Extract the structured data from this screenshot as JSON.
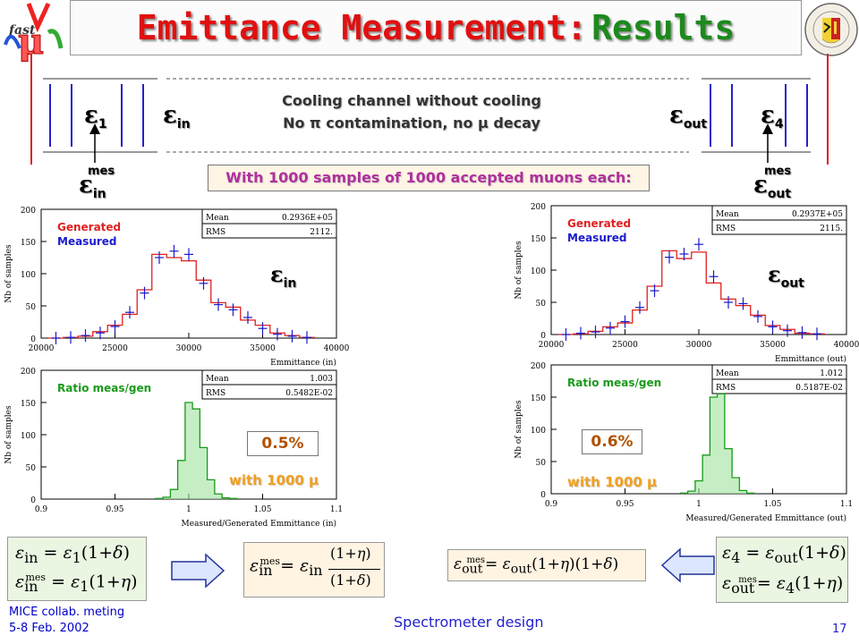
{
  "title": {
    "part1": "Emittance Measurement:",
    "part2": "Results"
  },
  "schematic": {
    "eps1": "1",
    "eps_in": "in",
    "eps_out": "out",
    "eps4": "4",
    "cooling_line1": "Cooling channel without cooling",
    "cooling_line2": "No π contamination, no μ decay",
    "mes_left": {
      "sup": "mes",
      "sub": "in"
    },
    "mes_right": {
      "sup": "mes",
      "sub": "out"
    }
  },
  "samples_text": "With 1000 samples of 1000 accepted muons each:",
  "plots": {
    "in_top": {
      "legend_generated": "Generated",
      "legend_measured": "Measured",
      "stats": {
        "mean_label": "Mean",
        "mean": "0.2936E+05",
        "rms_label": "RMS",
        "rms": "2112."
      },
      "label": "in",
      "ylabel": "Nb of samples",
      "xlabel": "Emmittance (in)",
      "xticks": [
        "20000",
        "25000",
        "30000",
        "35000",
        "40000"
      ],
      "yticks": [
        "0",
        "50",
        "100",
        "150",
        "200"
      ]
    },
    "out_top": {
      "legend_generated": "Generated",
      "legend_measured": "Measured",
      "stats": {
        "mean_label": "Mean",
        "mean": "0.2937E+05",
        "rms_label": "RMS",
        "rms": "2115."
      },
      "label": "out",
      "ylabel": "Nb of samples",
      "xlabel": "Emmittance (out)",
      "xticks": [
        "20000",
        "25000",
        "30000",
        "35000",
        "40000"
      ],
      "yticks": [
        "0",
        "50",
        "100",
        "150",
        "200"
      ]
    },
    "in_ratio": {
      "legend": "Ratio meas/gen",
      "stats": {
        "mean_label": "Mean",
        "mean": "1.003",
        "rms_label": "RMS",
        "rms": "0.5482E-02"
      },
      "percent": "0.5%",
      "with": "with 1000 μ",
      "ylabel": "Nb of samples",
      "xlabel": "Measured/Generated Emmittance (in)",
      "xticks": [
        "0.9",
        "0.95",
        "1",
        "1.05",
        "1.1"
      ],
      "yticks": [
        "0",
        "50",
        "100",
        "150",
        "200"
      ]
    },
    "out_ratio": {
      "legend": "Ratio meas/gen",
      "stats": {
        "mean_label": "Mean",
        "mean": "1.012",
        "rms_label": "RMS",
        "rms": "0.5187E-02"
      },
      "percent": "0.6%",
      "with": "with 1000 μ",
      "ylabel": "Nb of samples",
      "xlabel": "Measured/Generated Emmittance (out)",
      "xticks": [
        "0.9",
        "0.95",
        "1",
        "1.05",
        "1.1"
      ],
      "yticks": [
        "0",
        "50",
        "100",
        "150",
        "200"
      ]
    }
  },
  "chart_data": [
    {
      "type": "bar",
      "name": "Emittance in",
      "x": [
        21000,
        22000,
        23000,
        24000,
        25000,
        26000,
        27000,
        28000,
        29000,
        30000,
        31000,
        32000,
        33000,
        34000,
        35000,
        36000,
        37000,
        38000
      ],
      "series": [
        {
          "name": "Generated",
          "values": [
            0,
            1,
            3,
            10,
            20,
            37,
            75,
            130,
            125,
            120,
            90,
            55,
            48,
            28,
            20,
            8,
            4,
            1
          ]
        },
        {
          "name": "Measured",
          "values": [
            0,
            1,
            4,
            8,
            18,
            40,
            70,
            125,
            135,
            130,
            85,
            52,
            44,
            32,
            15,
            6,
            3,
            1
          ]
        }
      ]
    },
    {
      "type": "bar",
      "name": "Emittance out",
      "x": [
        21000,
        22000,
        23000,
        24000,
        25000,
        26000,
        27000,
        28000,
        29000,
        30000,
        31000,
        32000,
        33000,
        34000,
        35000,
        36000,
        37000,
        38000
      ],
      "series": [
        {
          "name": "Generated",
          "values": [
            0,
            1,
            5,
            12,
            18,
            38,
            75,
            130,
            118,
            128,
            80,
            55,
            45,
            30,
            14,
            8,
            2,
            1
          ]
        },
        {
          "name": "Measured",
          "values": [
            0,
            2,
            4,
            10,
            20,
            42,
            68,
            120,
            125,
            140,
            90,
            50,
            48,
            28,
            12,
            6,
            3,
            1
          ]
        }
      ]
    },
    {
      "type": "bar",
      "name": "Ratio in",
      "x": [
        0.98,
        0.985,
        0.99,
        0.995,
        1.0,
        1.005,
        1.01,
        1.015,
        1.02,
        1.025,
        1.03
      ],
      "series": [
        {
          "name": "Ratio meas/gen",
          "values": [
            1,
            3,
            15,
            60,
            150,
            140,
            80,
            30,
            8,
            2,
            1
          ]
        }
      ]
    },
    {
      "type": "bar",
      "name": "Ratio out",
      "x": [
        0.99,
        0.995,
        1.0,
        1.005,
        1.01,
        1.015,
        1.02,
        1.025,
        1.03,
        1.035
      ],
      "series": [
        {
          "name": "Ratio meas/gen",
          "values": [
            1,
            4,
            20,
            60,
            150,
            155,
            70,
            25,
            5,
            1
          ]
        }
      ]
    }
  ],
  "footer": {
    "left1": "MICE collab. meting",
    "left2": "5-8 Feb. 2002",
    "center": "Spectrometer design",
    "page": "17"
  }
}
